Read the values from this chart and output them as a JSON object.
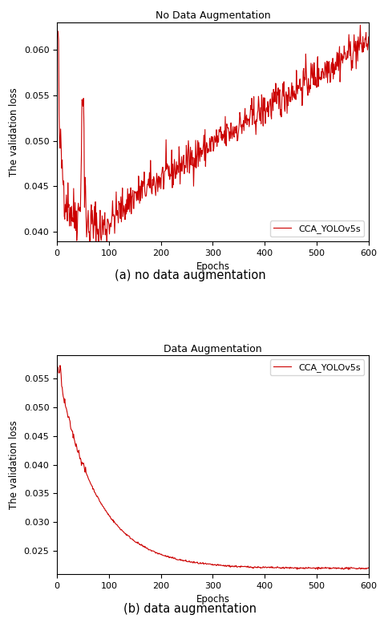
{
  "fig_width": 4.74,
  "fig_height": 7.87,
  "dpi": 100,
  "line_color": "#cc0000",
  "line_width": 0.8,
  "legend_label": "CCA_YOLOv5s",
  "plot1": {
    "title": "No Data Augmentation",
    "xlabel": "Epochs",
    "ylabel": "The validation loss",
    "xlim": [
      0,
      600
    ],
    "ylim": [
      0.039,
      0.063
    ],
    "yticks": [
      0.04,
      0.045,
      0.05,
      0.055,
      0.06
    ],
    "xticks": [
      0,
      100,
      200,
      300,
      400,
      500,
      600
    ],
    "caption": "(a) no data augmentation"
  },
  "plot2": {
    "title": "Data Augmentation",
    "xlabel": "Epochs",
    "ylabel": "The validation loss",
    "xlim": [
      0,
      600
    ],
    "ylim": [
      0.021,
      0.059
    ],
    "yticks": [
      0.025,
      0.03,
      0.035,
      0.04,
      0.045,
      0.05,
      0.055
    ],
    "xticks": [
      0,
      100,
      200,
      300,
      400,
      500,
      600
    ],
    "caption": "(b) data augmentation"
  },
  "seed": 42
}
